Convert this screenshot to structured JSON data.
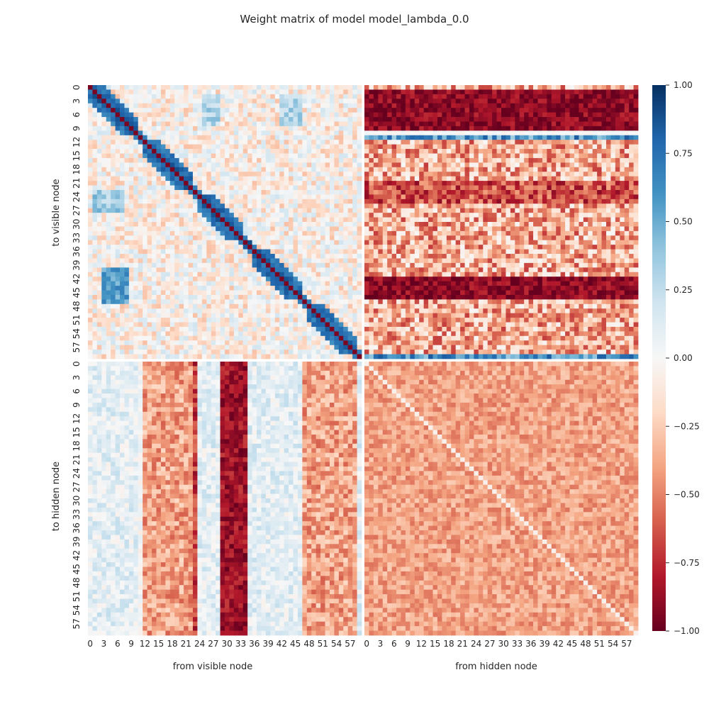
{
  "chart_data": {
    "type": "heatmap",
    "title": "Weight matrix of model model_lambda_0.0",
    "colormap": "RdBu",
    "vmin": -1.0,
    "vmax": 1.0,
    "colorbar_ticks": [
      "1.00",
      "0.75",
      "0.50",
      "0.25",
      "0.00",
      "−0.25",
      "−0.50",
      "−0.75",
      "−1.00"
    ],
    "colorbar_values": [
      1.0,
      0.75,
      0.5,
      0.25,
      0.0,
      -0.25,
      -0.5,
      -0.75,
      -1.0
    ],
    "panels": [
      {
        "row": "visible",
        "col": "visible",
        "description": "strong positive band around diagonal (blocks ~0-10, 12-22, 24-33, 36-46, 48-58), diagonal itself dark red, off-diagonal weak mixed near zero"
      },
      {
        "row": "visible",
        "col": "hidden",
        "description": "row-wise structure: rows 1-9 and 42-46 strongly negative, row 11 and row 59 positive, other rows moderately negative"
      },
      {
        "row": "hidden",
        "col": "visible",
        "description": "column-wise structure: columns 29-34 strongly negative, columns 12-22 and 47-58 moderately negative, columns 0-10 and 24-28 and 36-45 slightly positive"
      },
      {
        "row": "hidden",
        "col": "hidden",
        "description": "uniform moderately negative values (~-0.4), diagonal near zero"
      }
    ],
    "n_visible": 60,
    "n_hidden": 60,
    "x_groups": [
      {
        "label": "from visible node",
        "tick_labels": [
          "0",
          "3",
          "6",
          "9",
          "12",
          "15",
          "18",
          "21",
          "24",
          "27",
          "30",
          "33",
          "36",
          "39",
          "42",
          "45",
          "48",
          "51",
          "54",
          "57"
        ]
      },
      {
        "label": "from hidden node",
        "tick_labels": [
          "0",
          "3",
          "6",
          "9",
          "12",
          "15",
          "18",
          "21",
          "24",
          "27",
          "30",
          "33",
          "36",
          "39",
          "42",
          "45",
          "48",
          "51",
          "54",
          "57"
        ]
      }
    ],
    "y_groups": [
      {
        "label": "to visible node",
        "tick_labels": [
          "0",
          "3",
          "6",
          "9",
          "12",
          "15",
          "18",
          "21",
          "24",
          "27",
          "30",
          "33",
          "36",
          "39",
          "42",
          "45",
          "48",
          "51",
          "54",
          "57"
        ]
      },
      {
        "label": "to hidden node",
        "tick_labels": [
          "0",
          "3",
          "6",
          "9",
          "12",
          "15",
          "18",
          "21",
          "24",
          "27",
          "30",
          "33",
          "36",
          "39",
          "42",
          "45",
          "48",
          "51",
          "54",
          "57"
        ]
      }
    ]
  }
}
